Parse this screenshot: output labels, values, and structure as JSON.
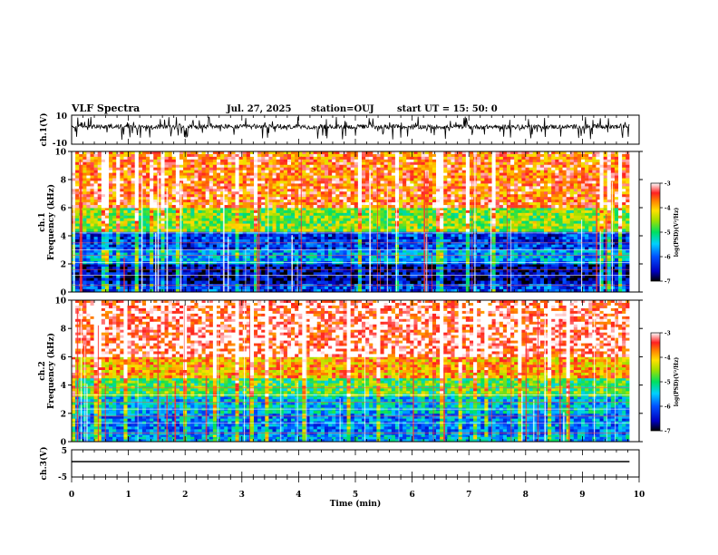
{
  "header": {
    "title": "VLF Spectra",
    "date": "Jul. 27, 2025",
    "station": "station=OUJ",
    "start_ut": "start UT =  15: 50: 0"
  },
  "chart_data": [
    {
      "type": "line",
      "name": "ch1-waveform",
      "ylabel": "ch.1(V)",
      "ylim": [
        -10,
        10
      ],
      "yticks": [
        "10",
        "-10"
      ],
      "xlim": [
        0,
        10
      ],
      "x_data_end": 9.83,
      "description_values": {
        "baseline": 2,
        "spike_amplitude_range": [
          -7,
          9
        ]
      },
      "color": "#000000"
    },
    {
      "type": "heatmap",
      "name": "ch1-spectrogram",
      "ylabel": "ch.1\nFrequency (kHz)",
      "ylim": [
        0,
        10
      ],
      "yticks": [
        "0",
        "2",
        "4",
        "6",
        "8",
        "10"
      ],
      "xlim": [
        0,
        10
      ],
      "x_data_end": 9.83,
      "colorbar": {
        "label": "log(PSD)(V²/Hz)",
        "ticks": [
          "-3",
          "-4",
          "-5",
          "-6",
          "-7"
        ],
        "range": [
          -7,
          -3
        ]
      },
      "bands": [
        {
          "from_khz": 0,
          "to_khz": 0.6,
          "level": -6.1
        },
        {
          "from_khz": 0.6,
          "to_khz": 2.0,
          "level": -6.6
        },
        {
          "from_khz": 2.0,
          "to_khz": 3.0,
          "level": -5.7
        },
        {
          "from_khz": 3.0,
          "to_khz": 4.3,
          "level": -6.2
        },
        {
          "from_khz": 4.3,
          "to_khz": 6.0,
          "level": -4.6
        },
        {
          "from_khz": 6.0,
          "to_khz": 10.0,
          "level": -3.6
        }
      ],
      "horizontal_lines_khz": [
        0.5,
        1.2,
        1.6,
        2.1,
        2.6,
        3.0,
        3.5,
        4.2
      ]
    },
    {
      "type": "heatmap",
      "name": "ch2-spectrogram",
      "ylabel": "ch.2\nFrequency (kHz)",
      "ylim": [
        0,
        10
      ],
      "yticks": [
        "0",
        "2",
        "4",
        "6",
        "8",
        "10"
      ],
      "xlim": [
        0,
        10
      ],
      "x_data_end": 9.83,
      "colorbar": {
        "label": "log(PSD)(V²/Hz)",
        "ticks": [
          "-3",
          "-4",
          "-5",
          "-6",
          "-7"
        ],
        "range": [
          -7,
          -3
        ]
      },
      "bands": [
        {
          "from_khz": 0,
          "to_khz": 0.5,
          "level": -5.6
        },
        {
          "from_khz": 0.5,
          "to_khz": 2.0,
          "level": -5.8
        },
        {
          "from_khz": 2.0,
          "to_khz": 3.2,
          "level": -5.5
        },
        {
          "from_khz": 3.2,
          "to_khz": 4.5,
          "level": -4.8
        },
        {
          "from_khz": 4.5,
          "to_khz": 6.0,
          "level": -3.9
        },
        {
          "from_khz": 6.0,
          "to_khz": 10.0,
          "level": -3.2
        }
      ],
      "horizontal_lines_khz": [
        0.6,
        1.3,
        1.8,
        2.3,
        2.8,
        3.3,
        3.8
      ]
    },
    {
      "type": "line",
      "name": "ch3-waveform",
      "ylabel": "ch.3(V)",
      "ylim": [
        -5,
        5
      ],
      "yticks": [
        "5",
        "-5"
      ],
      "xlim": [
        0,
        10
      ],
      "xlabel": "Time (min)",
      "xticks": [
        "0",
        "1",
        "2",
        "3",
        "4",
        "5",
        "6",
        "7",
        "8",
        "9",
        "10"
      ],
      "x": [
        0,
        9.83
      ],
      "y": [
        0,
        0
      ],
      "color": "#000000"
    }
  ]
}
